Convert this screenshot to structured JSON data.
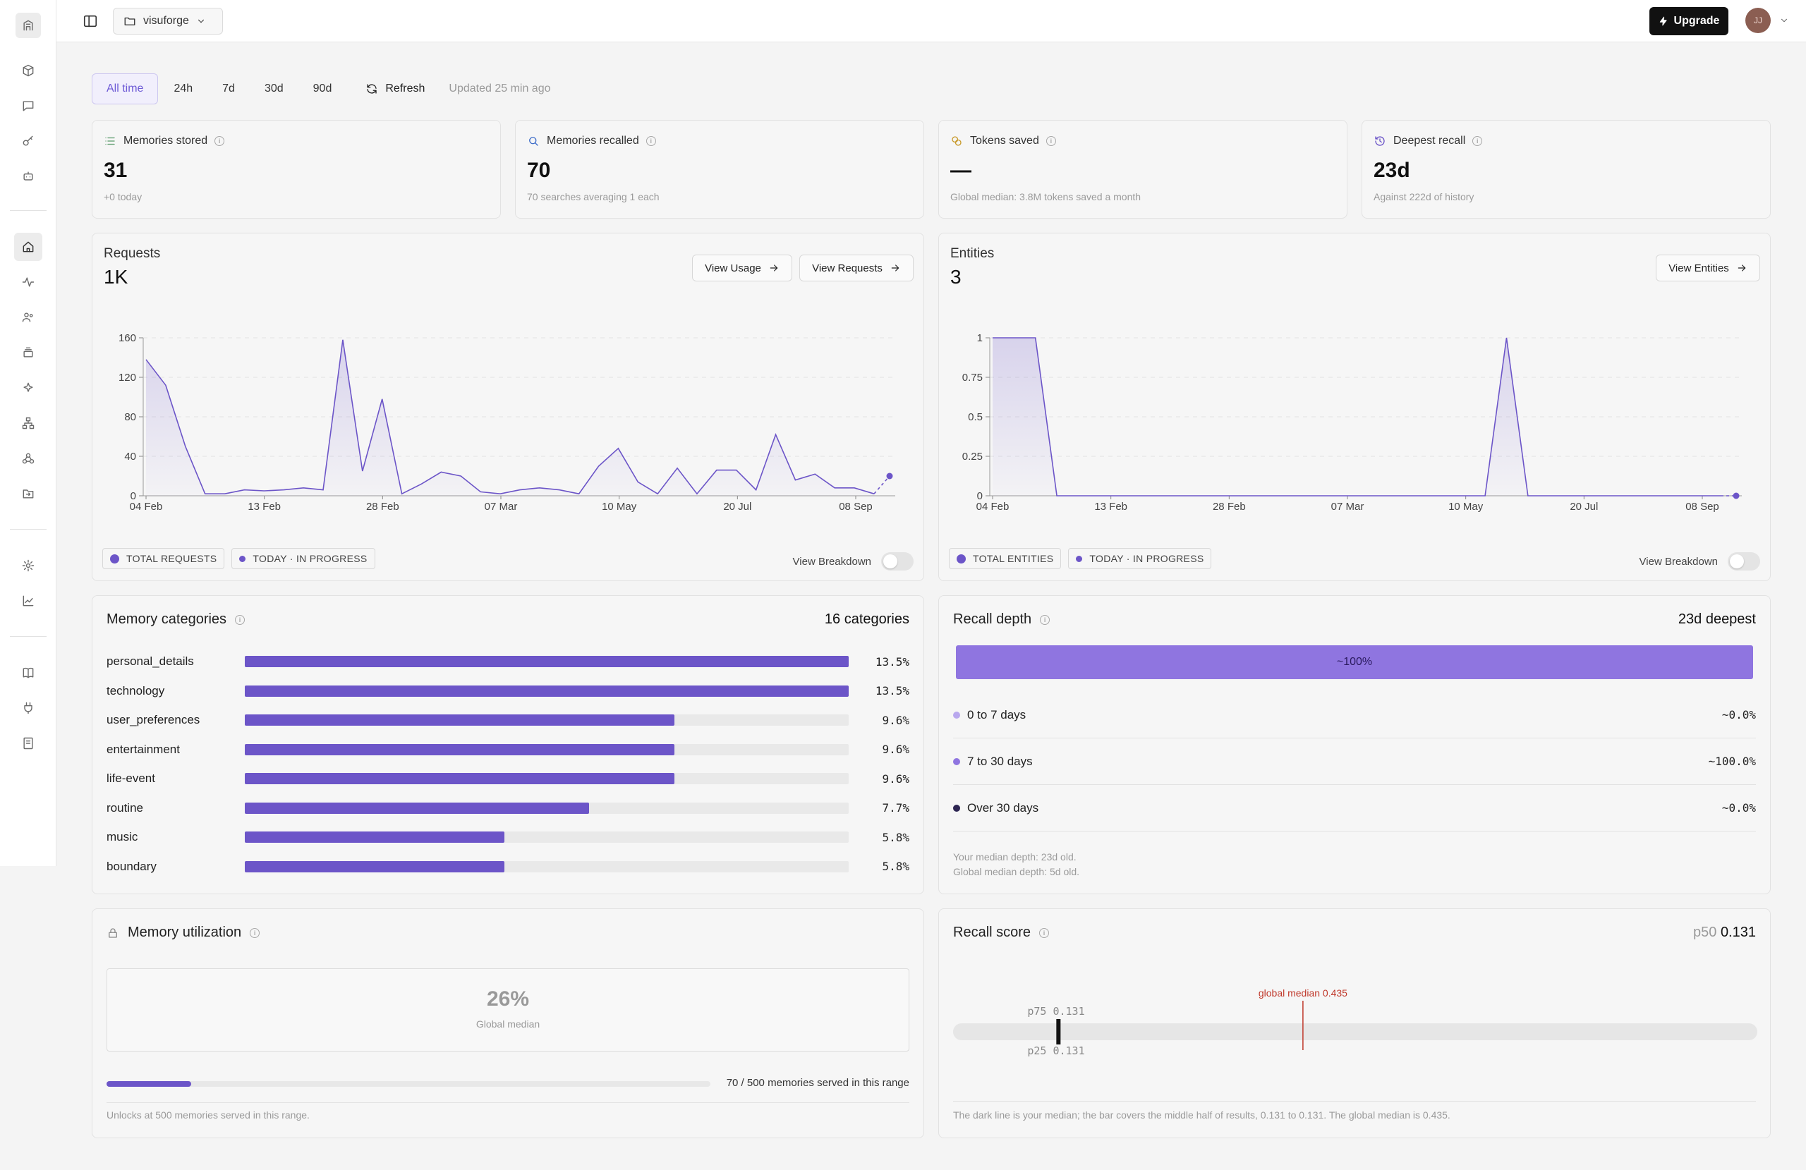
{
  "project": {
    "name": "visuforge"
  },
  "topbar": {
    "upgrade_label": "Upgrade",
    "avatar_initials": "JJ"
  },
  "filters": {
    "ranges": [
      "All time",
      "24h",
      "7d",
      "30d",
      "90d"
    ],
    "active": "All time",
    "refresh_label": "Refresh",
    "updated_text": "Updated 25 min ago"
  },
  "stats": [
    {
      "label": "Memories stored",
      "value": "31",
      "sub": "+0 today",
      "icon": "list-icon"
    },
    {
      "label": "Memories recalled",
      "value": "70",
      "sub": "70 searches averaging 1 each",
      "icon": "search-icon"
    },
    {
      "label": "Tokens saved",
      "value": "—",
      "sub": "Global median: 3.8M tokens saved a month",
      "icon": "coins-icon"
    },
    {
      "label": "Deepest recall",
      "value": "23d",
      "sub": "Against 222d of history",
      "icon": "history-icon"
    }
  ],
  "requests": {
    "title": "Requests",
    "total": "1K",
    "view_usage_label": "View Usage",
    "view_requests_label": "View Requests",
    "legend": [
      "TOTAL REQUESTS",
      "TODAY · IN PROGRESS"
    ],
    "breakdown_label": "View Breakdown"
  },
  "entities": {
    "title": "Entities",
    "total": "3",
    "view_entities_label": "View Entities",
    "legend": [
      "TOTAL ENTITIES",
      "TODAY · IN PROGRESS"
    ],
    "breakdown_label": "View Breakdown"
  },
  "chart_data": [
    {
      "type": "area",
      "title": "Requests",
      "x_ticks": [
        "04 Feb",
        "13 Feb",
        "28 Feb",
        "07 Mar",
        "10 May",
        "20 Jul",
        "08 Sep"
      ],
      "y_ticks": [
        0,
        40,
        80,
        120,
        160
      ],
      "ylim": [
        0,
        160
      ],
      "series": [
        {
          "name": "TOTAL REQUESTS",
          "values": [
            138,
            112,
            50,
            2,
            2,
            6,
            5,
            6,
            8,
            6,
            158,
            25,
            98,
            2,
            12,
            24,
            20,
            4,
            2,
            6,
            8,
            6,
            2,
            30,
            48,
            14,
            2,
            28,
            2,
            26,
            26,
            6,
            62,
            16,
            22,
            8,
            8,
            2
          ]
        },
        {
          "name": "TODAY · IN PROGRESS",
          "values": [
            2,
            20
          ]
        }
      ]
    },
    {
      "type": "area",
      "title": "Entities",
      "x_ticks": [
        "04 Feb",
        "13 Feb",
        "28 Feb",
        "07 Mar",
        "10 May",
        "20 Jul",
        "08 Sep"
      ],
      "y_ticks": [
        0,
        0.25,
        0.5,
        0.75,
        1
      ],
      "ylim": [
        0,
        1
      ],
      "series": [
        {
          "name": "TOTAL ENTITIES",
          "values": [
            1,
            1,
            1,
            0,
            0,
            0,
            0,
            0,
            0,
            0,
            0,
            0,
            0,
            0,
            0,
            0,
            0,
            0,
            0,
            0,
            0,
            0,
            0,
            0,
            1,
            0,
            0,
            0,
            0,
            0,
            0,
            0,
            0,
            0,
            0
          ]
        },
        {
          "name": "TODAY · IN PROGRESS",
          "values": [
            0,
            0
          ]
        }
      ]
    }
  ],
  "categories": {
    "title": "Memory categories",
    "count_label": "16 categories",
    "items": [
      {
        "name": "personal_details",
        "percent": "13.5%",
        "value": 13.5
      },
      {
        "name": "technology",
        "percent": "13.5%",
        "value": 13.5
      },
      {
        "name": "user_preferences",
        "percent": "9.6%",
        "value": 9.6
      },
      {
        "name": "entertainment",
        "percent": "9.6%",
        "value": 9.6
      },
      {
        "name": "life-event",
        "percent": "9.6%",
        "value": 9.6
      },
      {
        "name": "routine",
        "percent": "7.7%",
        "value": 7.7
      },
      {
        "name": "music",
        "percent": "5.8%",
        "value": 5.8
      },
      {
        "name": "boundary",
        "percent": "5.8%",
        "value": 5.8
      }
    ]
  },
  "recall_depth": {
    "title": "Recall depth",
    "deepest_label": "23d deepest",
    "bar_label": "~100%",
    "rows": [
      {
        "label": "0 to 7 days",
        "value": "~0.0%",
        "color": "#b9a8ee"
      },
      {
        "label": "7 to 30 days",
        "value": "~100.0%",
        "color": "#8f75e0"
      },
      {
        "label": "Over 30 days",
        "value": "~0.0%",
        "color": "#2d2552"
      }
    ],
    "note1": "Your median depth: 23d old.",
    "note2": "Global median depth: 5d old."
  },
  "utilization": {
    "title": "Memory utilization",
    "global_value": "26%",
    "global_label": "Global median",
    "progress": 0.14,
    "progress_label": "70 / 500 memories served in this range",
    "unlock_note": "Unlocks at 500 memories served in this range."
  },
  "recall_score": {
    "title": "Recall score",
    "p50_label": "p50",
    "p50_value": "0.131",
    "p75_label": "p75 0.131",
    "p25_label": "p25 0.131",
    "global_label": "global median 0.435",
    "median": 0.131,
    "global_median": 0.435,
    "note": "The dark line is your median; the bar covers the middle half of results, 0.131 to 0.131. The global median is 0.435."
  },
  "colors": {
    "accent": "#6c55c8",
    "accent_light": "#8f75e0",
    "danger": "#c0392b"
  }
}
